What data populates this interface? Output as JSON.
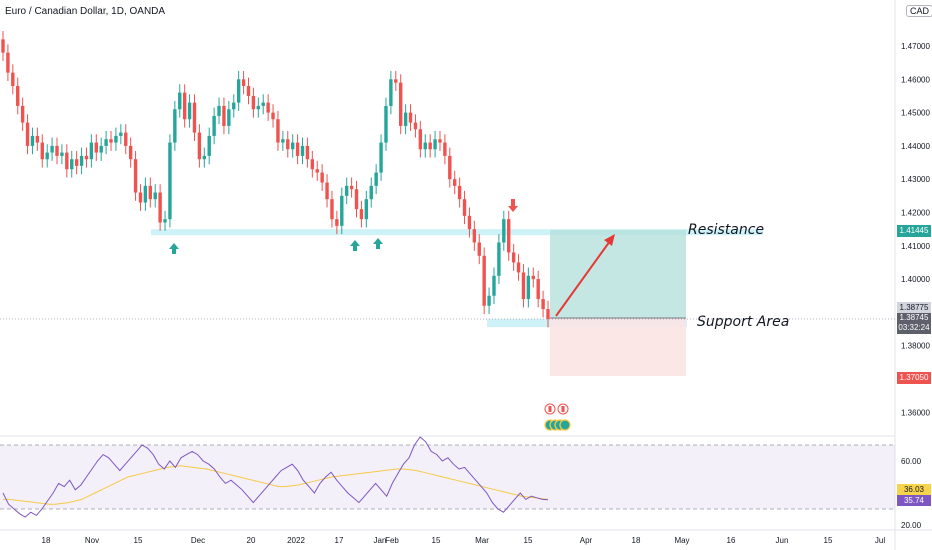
{
  "header": {
    "title": "Euro / Canadian Dollar, 1D, OANDA",
    "currency": "CAD"
  },
  "price_tags": {
    "resistance": "1.41445",
    "last": "1.38775",
    "current": "1.38745",
    "countdown": "03:32:24",
    "stop": "1.37050"
  },
  "rsi_tags": {
    "ma": "36.03",
    "rsi": "35.74"
  },
  "annotations": {
    "resistance": "Resistance",
    "support": "Support Area"
  },
  "colors": {
    "up": "#26a69a",
    "down": "#ef5350",
    "zone": "#b2ebf2",
    "target_zone": "#b2dfdb",
    "stop_zone": "#fce4e4",
    "rsi_line": "#7e57c2",
    "rsi_ma": "#f7c948",
    "arrow": "#e53935"
  },
  "chart_data": [
    {
      "type": "candlestick",
      "title": "Euro / Canadian Dollar, 1D, OANDA",
      "ylim": [
        1.355,
        1.485
      ],
      "y_ticks": [
        "1.47000",
        "1.46000",
        "1.45000",
        "1.44000",
        "1.43000",
        "1.42000",
        "1.41000",
        "1.40000",
        "1.39000",
        "1.38000",
        "1.36000"
      ],
      "x_ticks": [
        "18",
        "Nov",
        "15",
        "Dec",
        "20",
        "2022",
        "17",
        "Jan",
        "Feb",
        "15",
        "Mar",
        "15",
        "Apr",
        "18",
        "May",
        "16",
        "Jun",
        "15",
        "Jul"
      ],
      "close": [
        1.468,
        1.462,
        1.458,
        1.452,
        1.447,
        1.44,
        1.443,
        1.441,
        1.436,
        1.438,
        1.44,
        1.437,
        1.438,
        1.433,
        1.436,
        1.434,
        1.437,
        1.436,
        1.441,
        1.438,
        1.44,
        1.442,
        1.441,
        1.443,
        1.444,
        1.44,
        1.436,
        1.426,
        1.423,
        1.428,
        1.424,
        1.426,
        1.417,
        1.418,
        1.441,
        1.451,
        1.456,
        1.448,
        1.453,
        1.444,
        1.436,
        1.437,
        1.443,
        1.449,
        1.452,
        1.446,
        1.451,
        1.453,
        1.46,
        1.458,
        1.455,
        1.451,
        1.452,
        1.453,
        1.45,
        1.448,
        1.441,
        1.442,
        1.439,
        1.441,
        1.437,
        1.44,
        1.436,
        1.433,
        1.432,
        1.429,
        1.424,
        1.418,
        1.416,
        1.425,
        1.428,
        1.427,
        1.421,
        1.418,
        1.424,
        1.428,
        1.432,
        1.441,
        1.452,
        1.46,
        1.459,
        1.446,
        1.45,
        1.447,
        1.445,
        1.439,
        1.441,
        1.439,
        1.442,
        1.441,
        1.437,
        1.43,
        1.428,
        1.424,
        1.419,
        1.415,
        1.411,
        1.407,
        1.392,
        1.395,
        1.401,
        1.411,
        1.418,
        1.408,
        1.405,
        1.402,
        1.394,
        1.401,
        1.4,
        1.394,
        1.391,
        1.388
      ],
      "open": [
        1.472,
        1.468,
        1.462,
        1.458,
        1.452,
        1.447,
        1.44,
        1.443,
        1.441,
        1.436,
        1.438,
        1.44,
        1.437,
        1.438,
        1.433,
        1.436,
        1.434,
        1.437,
        1.436,
        1.441,
        1.438,
        1.44,
        1.442,
        1.441,
        1.443,
        1.444,
        1.44,
        1.436,
        1.426,
        1.423,
        1.428,
        1.424,
        1.426,
        1.417,
        1.418,
        1.441,
        1.451,
        1.456,
        1.448,
        1.453,
        1.444,
        1.436,
        1.437,
        1.443,
        1.449,
        1.452,
        1.446,
        1.451,
        1.453,
        1.46,
        1.458,
        1.455,
        1.451,
        1.452,
        1.453,
        1.45,
        1.448,
        1.441,
        1.442,
        1.439,
        1.441,
        1.437,
        1.44,
        1.436,
        1.433,
        1.432,
        1.429,
        1.424,
        1.418,
        1.416,
        1.425,
        1.428,
        1.427,
        1.421,
        1.418,
        1.424,
        1.428,
        1.432,
        1.441,
        1.452,
        1.46,
        1.459,
        1.446,
        1.45,
        1.447,
        1.445,
        1.439,
        1.441,
        1.439,
        1.442,
        1.441,
        1.437,
        1.43,
        1.428,
        1.424,
        1.419,
        1.415,
        1.411,
        1.407,
        1.392,
        1.395,
        1.401,
        1.411,
        1.418,
        1.408,
        1.405,
        1.402,
        1.394,
        1.401,
        1.4,
        1.394,
        1.391
      ],
      "resistance_zone": [
        1.4135,
        1.415
      ],
      "support_zone": [
        1.3865,
        1.388
      ]
    },
    {
      "type": "line",
      "title": "RSI",
      "ylim": [
        17,
        80
      ],
      "y_ticks": [
        "60.00",
        "20.00"
      ],
      "bands": [
        30,
        70
      ],
      "series": [
        {
          "values": [
            40,
            33,
            30,
            27,
            25,
            28,
            26,
            30,
            35,
            40,
            46,
            44,
            48,
            42,
            45,
            50,
            55,
            60,
            64,
            62,
            58,
            54,
            58,
            62,
            66,
            70,
            68,
            64,
            58,
            55,
            60,
            56,
            62,
            64,
            66,
            64,
            60,
            58,
            55,
            50,
            46,
            48,
            45,
            42,
            38,
            34,
            38,
            42,
            46,
            50,
            54,
            56,
            58,
            54,
            48,
            44,
            40,
            46,
            50,
            53,
            48,
            44,
            40,
            37,
            34,
            38,
            42,
            46,
            42,
            38,
            46,
            52,
            58,
            62,
            70,
            75,
            72,
            66,
            64,
            60,
            62,
            58,
            55,
            56,
            52,
            48,
            44,
            40,
            34,
            30,
            28,
            32,
            36,
            40,
            36,
            38,
            37,
            36,
            35.74
          ]
        },
        {
          "values": [
            36,
            36,
            35.5,
            35,
            34.5,
            34,
            33.5,
            33,
            33,
            33.5,
            34,
            35,
            36,
            38,
            40,
            42,
            44,
            46,
            48,
            50,
            51,
            52,
            53,
            54,
            55,
            56,
            56.5,
            57,
            56.5,
            56,
            55.5,
            55,
            54,
            53,
            52,
            51,
            50,
            49,
            48,
            47,
            46,
            45,
            44,
            44,
            44.5,
            45,
            46,
            47,
            48,
            49,
            50,
            50.5,
            51,
            51.5,
            52,
            52.5,
            53,
            53.5,
            54,
            54.5,
            55,
            55,
            54.5,
            54,
            53,
            52,
            51,
            50,
            49,
            48,
            47,
            46,
            45,
            44,
            43,
            42,
            41,
            40,
            39,
            38,
            37.5,
            37,
            36.5,
            36.03
          ]
        }
      ]
    }
  ]
}
